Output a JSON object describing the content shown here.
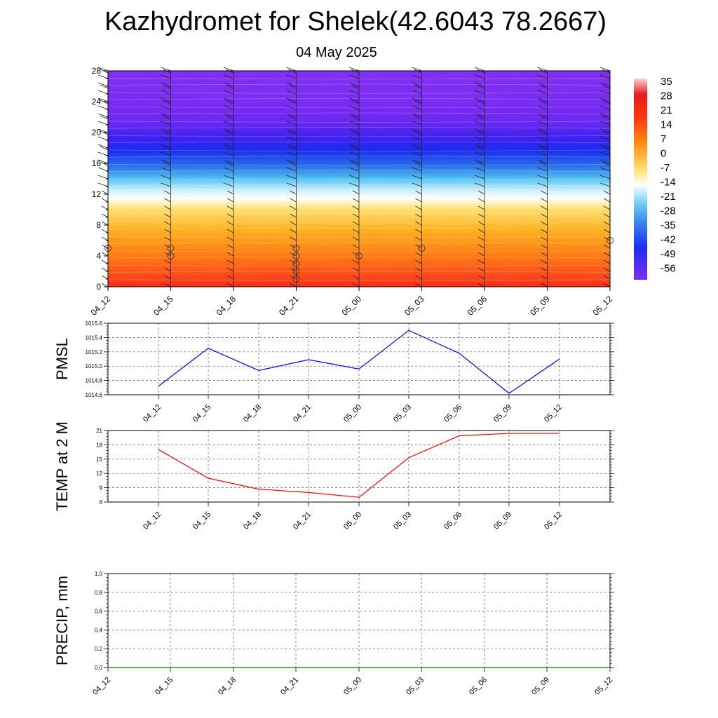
{
  "title": "Kazhydromet for Shelek(42.6043 78.2667)",
  "subtitle": "04 May 2025",
  "chart_data": [
    {
      "type": "heatmap",
      "name": "cross-section",
      "x_ticks": [
        "04_12",
        "04_15",
        "04_18",
        "04_21",
        "05_00",
        "05_03",
        "05_06",
        "05_09",
        "05_12"
      ],
      "y_ticks": [
        0,
        4,
        8,
        12,
        16,
        20,
        24,
        28
      ],
      "ylim": [
        0,
        28
      ],
      "colorbar_labels": [
        "35",
        "28",
        "21",
        "14",
        "7",
        "0",
        "-7",
        "-14",
        "-21",
        "-28",
        "-35",
        "-42",
        "-49",
        "-56"
      ],
      "colors": {
        "hot": "#e41a1c",
        "orange": "#ff7f00",
        "yellow": "#fff580",
        "white": "#ffffff",
        "sky": "#4fc3f7",
        "blue": "#1a3cff",
        "violet": "#7f2aff"
      },
      "circles": [
        {
          "x": "04_12",
          "levels": [
            5
          ]
        },
        {
          "x": "04_15",
          "levels": [
            4,
            5
          ]
        },
        {
          "x": "04_21",
          "levels": [
            1,
            2,
            3,
            4,
            5
          ]
        },
        {
          "x": "05_00",
          "levels": [
            4
          ]
        },
        {
          "x": "05_03",
          "levels": [
            5
          ]
        },
        {
          "x": "05_12",
          "levels": [
            6
          ]
        }
      ]
    },
    {
      "type": "line",
      "ylabel": "PMSL",
      "categories": [
        "04_12",
        "04_15",
        "04_18",
        "04_21",
        "05_00",
        "05_03",
        "05_06",
        "05_09",
        "05_12"
      ],
      "series": [
        {
          "values": [
            1014.72,
            1015.25,
            1014.94,
            1015.09,
            1014.96,
            1015.5,
            1015.18,
            1014.62,
            1015.1
          ],
          "color": "#0000ff"
        }
      ],
      "ylim": [
        1014.6,
        1015.6
      ],
      "y_ticks": [
        "1014.6",
        "1014.8",
        "1015.0",
        "1015.2",
        "1015.4",
        "1015.6"
      ],
      "grid": true
    },
    {
      "type": "line",
      "ylabel": "TEMP at 2 M",
      "categories": [
        "04_12",
        "04_15",
        "04_18",
        "04_21",
        "05_00",
        "05_03",
        "05_06",
        "05_09",
        "05_12"
      ],
      "series": [
        {
          "values": [
            17.0,
            11.0,
            8.7,
            8.0,
            7.0,
            15.3,
            19.9,
            20.4,
            20.4
          ],
          "color": "#ff0000"
        }
      ],
      "ylim": [
        6,
        21
      ],
      "y_ticks": [
        "6",
        "9",
        "12",
        "15",
        "18",
        "21"
      ],
      "grid": true
    },
    {
      "type": "line",
      "ylabel": "PRECIP, mm",
      "categories": [
        "04_12",
        "04_15",
        "04_18",
        "04_21",
        "05_00",
        "05_03",
        "05_06",
        "05_09",
        "05_12"
      ],
      "series": [
        {
          "values": [
            0,
            0,
            0,
            0,
            0,
            0,
            0,
            0,
            0
          ],
          "color": "#008000"
        }
      ],
      "ylim": [
        0,
        1
      ],
      "y_ticks": [
        "0.0",
        "0.2",
        "0.4",
        "0.6",
        "0.8",
        "1.0"
      ],
      "grid": true
    }
  ]
}
